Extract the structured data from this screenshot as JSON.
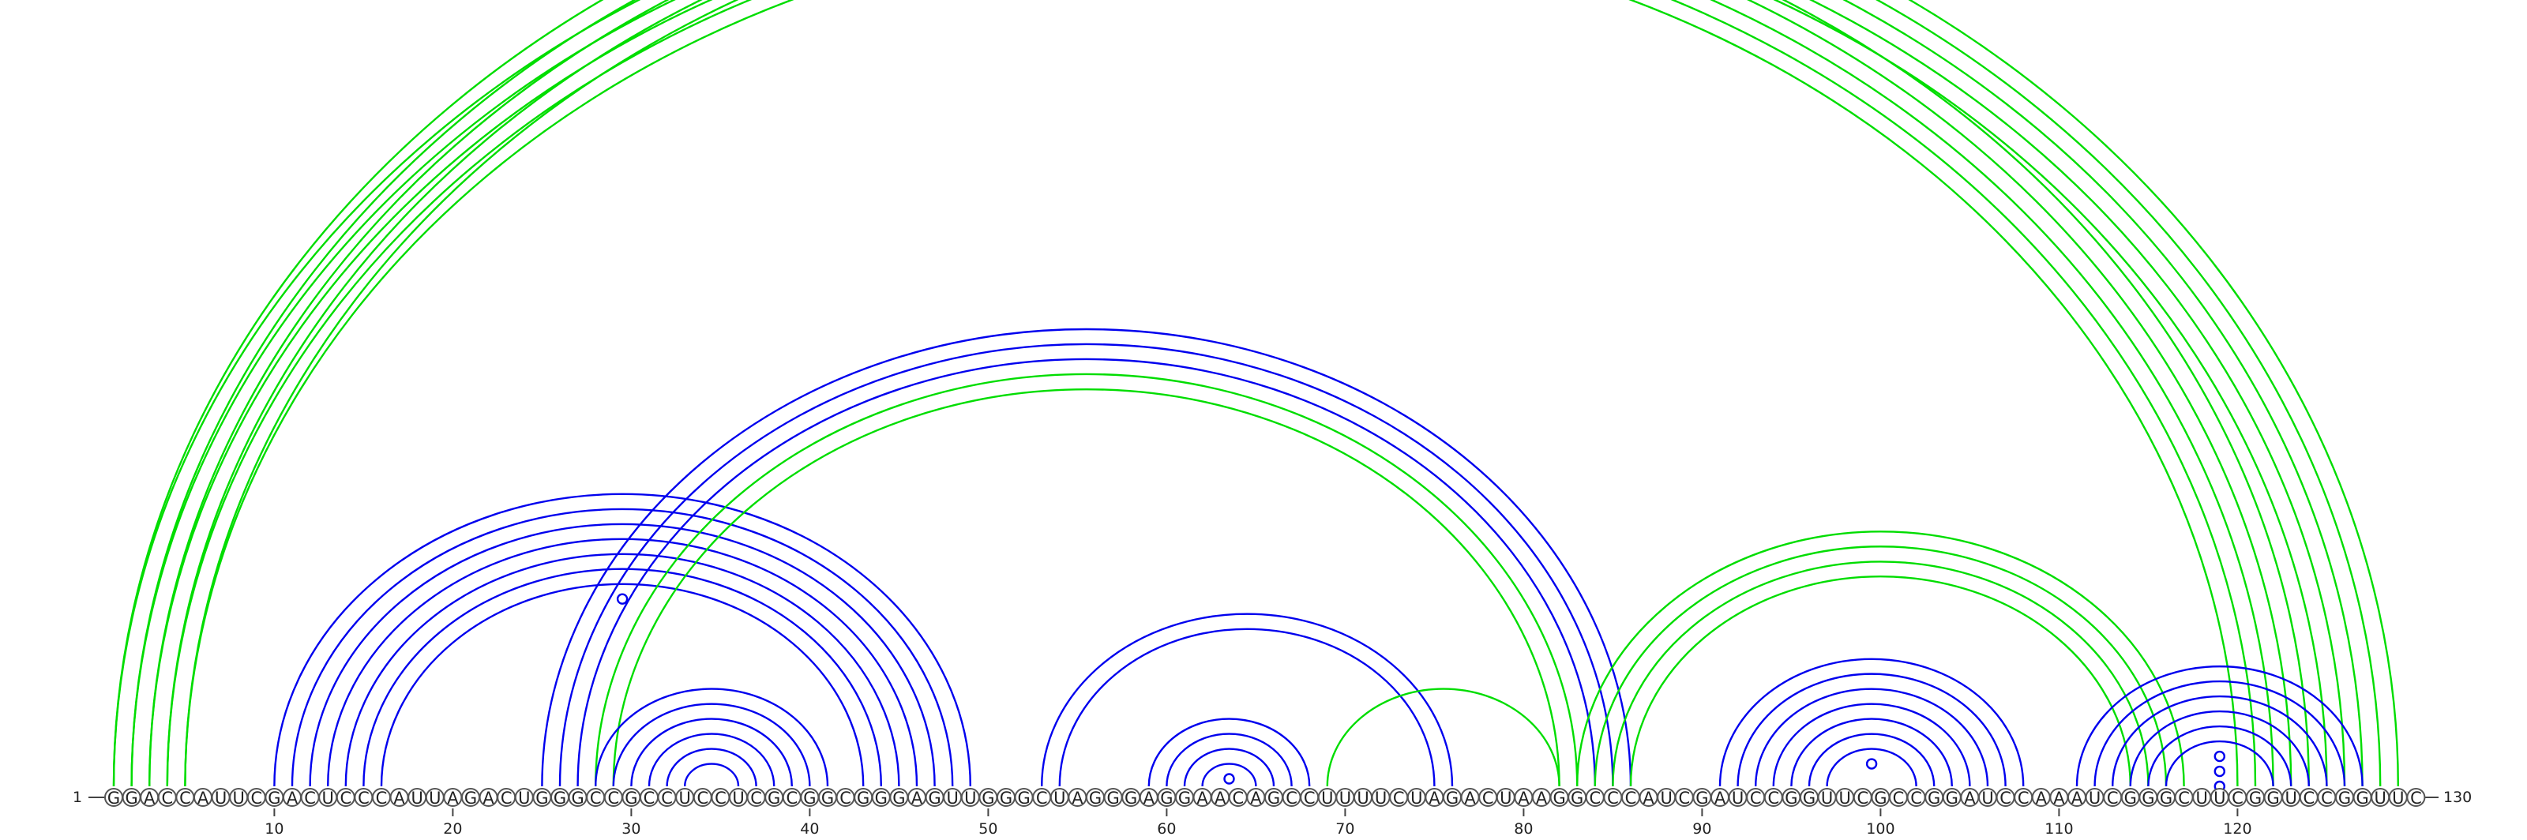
{
  "diagram": {
    "sequence": "GGACCAUUCGACUCCCAUUAGACUGGGCCGCCUCCUCGCGGCGGGAGUUGGGCUAGGGAGGAACAGCCUUUUCUAGACUAAGGCCCAUCGAUCCGGUUCGCCGGAUCCAAAUCGGGCUUCGGUCCGGUUC",
    "start_label": "1",
    "end_label": "130",
    "ticks": [
      10,
      20,
      30,
      40,
      50,
      60,
      70,
      80,
      90,
      100,
      110,
      120
    ],
    "colors": {
      "blue": "#0000ee",
      "green": "#00dd00"
    },
    "arcs": [
      {
        "i": 1,
        "j": 129,
        "color": "green"
      },
      {
        "i": 2,
        "j": 128,
        "color": "green"
      },
      {
        "i": 3,
        "j": 127,
        "color": "green"
      },
      {
        "i": 4,
        "j": 126,
        "color": "green"
      },
      {
        "i": 5,
        "j": 125,
        "color": "green"
      },
      {
        "i": 1,
        "j": 124,
        "color": "green"
      },
      {
        "i": 2,
        "j": 123,
        "color": "green"
      },
      {
        "i": 3,
        "j": 122,
        "color": "green"
      },
      {
        "i": 4,
        "j": 121,
        "color": "green"
      },
      {
        "i": 5,
        "j": 120,
        "color": "green"
      },
      {
        "i": 10,
        "j": 49,
        "color": "blue"
      },
      {
        "i": 11,
        "j": 48,
        "color": "blue"
      },
      {
        "i": 12,
        "j": 47,
        "color": "blue"
      },
      {
        "i": 13,
        "j": 46,
        "color": "blue"
      },
      {
        "i": 14,
        "j": 45,
        "color": "blue"
      },
      {
        "i": 15,
        "j": 44,
        "color": "blue"
      },
      {
        "i": 16,
        "j": 43,
        "color": "blue"
      },
      {
        "i": 25,
        "j": 86,
        "color": "blue"
      },
      {
        "i": 26,
        "j": 85,
        "color": "blue"
      },
      {
        "i": 27,
        "j": 84,
        "color": "blue"
      },
      {
        "i": 28,
        "j": 83,
        "color": "green"
      },
      {
        "i": 29,
        "j": 82,
        "color": "green"
      },
      {
        "i": 28,
        "j": 41,
        "color": "blue"
      },
      {
        "i": 29,
        "j": 40,
        "color": "blue"
      },
      {
        "i": 30,
        "j": 39,
        "color": "blue"
      },
      {
        "i": 31,
        "j": 38,
        "color": "blue"
      },
      {
        "i": 32,
        "j": 37,
        "color": "blue"
      },
      {
        "i": 33,
        "j": 36,
        "color": "blue"
      },
      {
        "i": 53,
        "j": 76,
        "color": "blue"
      },
      {
        "i": 54,
        "j": 75,
        "color": "blue"
      },
      {
        "i": 59,
        "j": 68,
        "color": "blue"
      },
      {
        "i": 60,
        "j": 67,
        "color": "blue"
      },
      {
        "i": 61,
        "j": 66,
        "color": "blue"
      },
      {
        "i": 62,
        "j": 65,
        "color": "blue"
      },
      {
        "i": 69,
        "j": 82,
        "color": "green"
      },
      {
        "i": 83,
        "j": 117,
        "color": "green"
      },
      {
        "i": 84,
        "j": 116,
        "color": "green"
      },
      {
        "i": 85,
        "j": 115,
        "color": "green"
      },
      {
        "i": 86,
        "j": 114,
        "color": "green"
      },
      {
        "i": 91,
        "j": 108,
        "color": "blue"
      },
      {
        "i": 92,
        "j": 107,
        "color": "blue"
      },
      {
        "i": 93,
        "j": 106,
        "color": "blue"
      },
      {
        "i": 94,
        "j": 105,
        "color": "blue"
      },
      {
        "i": 95,
        "j": 104,
        "color": "blue"
      },
      {
        "i": 96,
        "j": 103,
        "color": "blue"
      },
      {
        "i": 97,
        "j": 102,
        "color": "blue"
      },
      {
        "i": 111,
        "j": 127,
        "color": "blue"
      },
      {
        "i": 112,
        "j": 126,
        "color": "blue"
      },
      {
        "i": 113,
        "j": 125,
        "color": "blue"
      },
      {
        "i": 114,
        "j": 124,
        "color": "blue"
      },
      {
        "i": 115,
        "j": 123,
        "color": "blue"
      },
      {
        "i": 116,
        "j": 122,
        "color": "blue"
      }
    ],
    "loops": [
      {
        "i": 6,
        "j": 125,
        "color": "green"
      },
      {
        "i": 17,
        "j": 42,
        "color": "blue"
      },
      {
        "i": 63,
        "j": 64,
        "color": "blue"
      },
      {
        "i": 98,
        "j": 101,
        "color": "blue"
      },
      {
        "i": 117,
        "j": 121,
        "color": "blue"
      },
      {
        "i": 118,
        "j": 120,
        "color": "blue"
      },
      {
        "i": 119,
        "j": 119,
        "color": "blue"
      }
    ]
  }
}
